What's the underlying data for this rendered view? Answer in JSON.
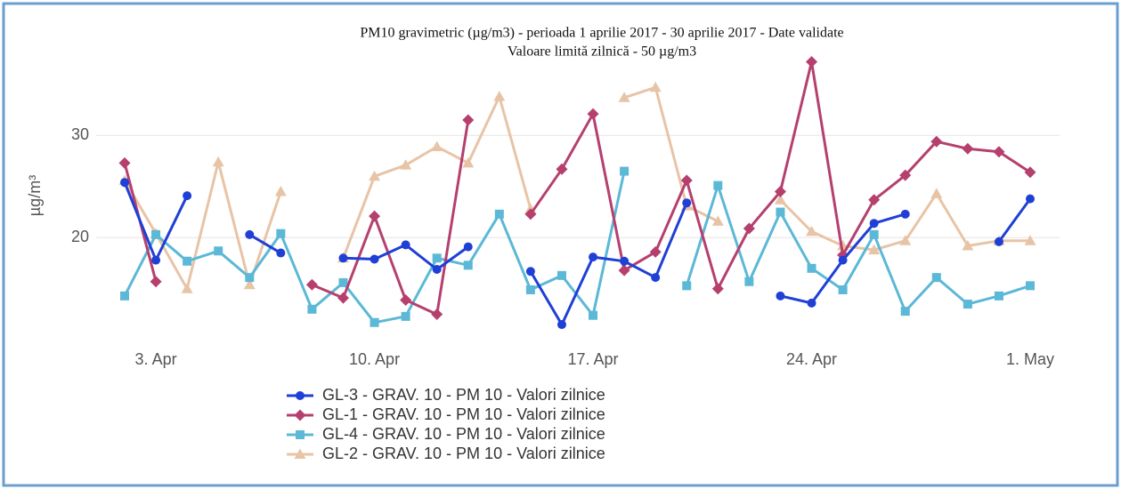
{
  "chart_data": {
    "type": "line",
    "title": "PM10 gravimetric (µg/m3) - perioada 1 aprilie 2017 - 30 aprilie 2017 - Date validate",
    "subtitle": "Valoare limită zilnică - 50 µg/m3",
    "y_label": "µg/m³",
    "categories": [
      null,
      "3. Apr",
      null,
      null,
      null,
      null,
      null,
      null,
      "10. Apr",
      null,
      null,
      null,
      null,
      null,
      null,
      "17. Apr",
      null,
      null,
      null,
      null,
      null,
      null,
      "24. Apr",
      null,
      null,
      null,
      null,
      null,
      null,
      "1. May"
    ],
    "ylim": [
      10.2,
      38.2
    ],
    "yticks": [
      20,
      30
    ],
    "grid": true,
    "series": [
      {
        "name": "GL-3 - GRAV. 10 - PM 10 - Valori zilnice",
        "color": "#1f3fd6",
        "marker": "circle",
        "values": [
          25.4,
          17.8,
          24.1,
          null,
          20.3,
          18.5,
          null,
          18.0,
          17.9,
          19.3,
          16.9,
          19.1,
          null,
          16.7,
          11.5,
          18.1,
          17.7,
          16.1,
          23.4,
          null,
          null,
          14.3,
          13.6,
          17.8,
          21.4,
          22.3,
          null,
          null,
          19.6,
          23.8
        ]
      },
      {
        "name": "GL-1 - GRAV. 10 - PM 10 - Valori zilnice",
        "color": "#b5406e",
        "marker": "diamond",
        "values": [
          27.3,
          15.7,
          null,
          null,
          null,
          null,
          15.4,
          14.1,
          22.1,
          13.9,
          12.5,
          31.5,
          null,
          22.3,
          26.7,
          32.1,
          16.8,
          18.6,
          25.6,
          15.0,
          20.9,
          24.5,
          37.2,
          18.3,
          23.7,
          26.1,
          29.4,
          28.7,
          28.4,
          26.4
        ]
      },
      {
        "name": "GL-4 - GRAV. 10 - PM 10 - Valori zilnice",
        "color": "#5bb8d6",
        "marker": "square",
        "values": [
          14.3,
          20.3,
          17.7,
          18.7,
          16.1,
          20.4,
          13.0,
          15.6,
          11.7,
          12.3,
          18.0,
          17.3,
          22.3,
          14.9,
          16.3,
          12.4,
          26.5,
          null,
          15.3,
          25.1,
          15.7,
          22.5,
          17.0,
          14.9,
          20.3,
          12.8,
          16.1,
          13.5,
          14.3,
          15.3
        ]
      },
      {
        "name": "GL-2 - GRAV. 10 - PM 10 - Valori zilnice",
        "color": "#e8c4a6",
        "marker": "triangle",
        "values": [
          25.6,
          20.4,
          15.0,
          27.4,
          15.4,
          24.5,
          null,
          18.0,
          26.0,
          27.1,
          28.9,
          27.3,
          33.8,
          22.8,
          null,
          null,
          33.7,
          34.7,
          23.1,
          21.6,
          null,
          23.7,
          20.6,
          19.2,
          18.8,
          19.7,
          24.3,
          19.2,
          19.7,
          19.7
        ]
      }
    ]
  }
}
